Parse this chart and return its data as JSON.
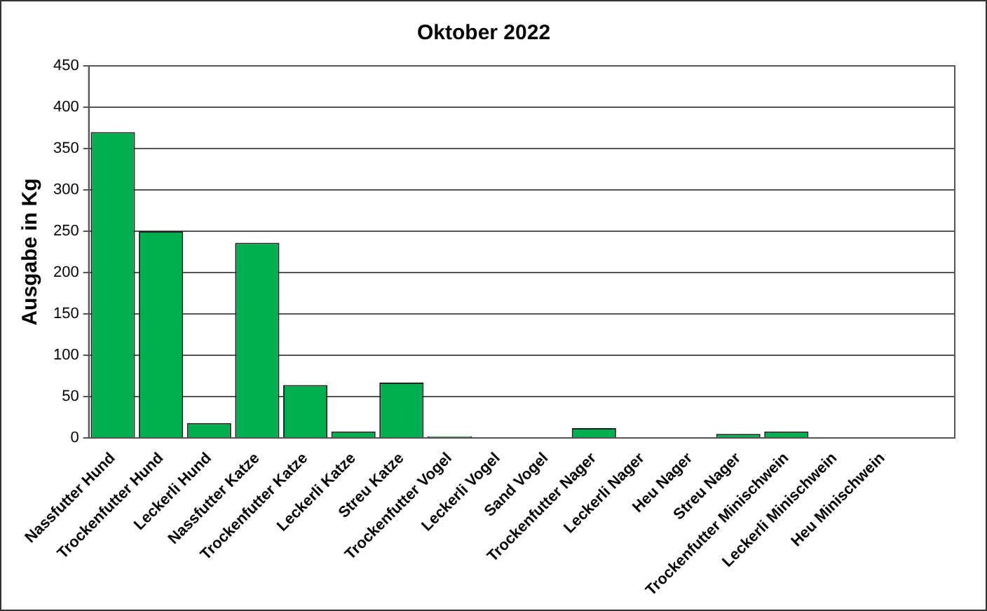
{
  "chart_data": {
    "type": "bar",
    "title": "Oktober 2022",
    "ylabel": "Ausgabe in Kg",
    "categories": [
      "Nassfutter Hund",
      "Trockenfutter Hund",
      "Leckerli Hund",
      "Nassfutter Katze",
      "Trockenfutter Katze",
      "Leckerli Katze",
      "Streu Katze",
      "Trockenfutter Vogel",
      "Leckerli Vogel",
      "Sand Vogel",
      "Trockenfutter Nager",
      "Leckerli Nager",
      "Heu Nager",
      "Streu Nager",
      "Trockenfutter Minischwein",
      "Leckerli Minischwein",
      "Heu Minischwein",
      null
    ],
    "values": [
      370,
      250,
      18,
      236,
      64,
      8,
      67,
      2,
      1,
      0,
      12,
      1,
      0,
      5,
      8,
      0,
      0,
      null
    ],
    "color": "#00b050",
    "ylim": [
      0,
      450
    ],
    "yticks": [
      0,
      50,
      100,
      150,
      200,
      250,
      300,
      350,
      400,
      450
    ],
    "grid": "y",
    "legend": false
  }
}
